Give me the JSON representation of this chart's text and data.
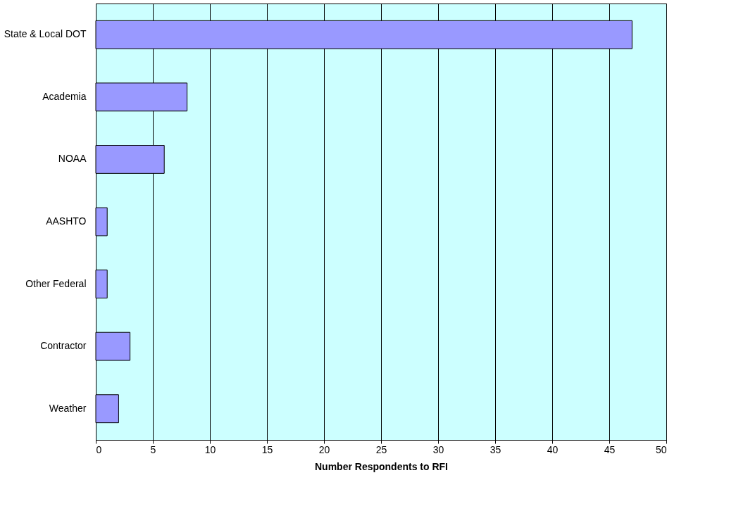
{
  "chart_data": {
    "type": "bar",
    "orientation": "horizontal",
    "categories": [
      "State & Local DOT",
      "Academia",
      "NOAA",
      "AASHTO",
      "Other Federal",
      "Contractor",
      "Weather"
    ],
    "values": [
      47,
      8,
      6,
      1,
      1,
      3,
      2
    ],
    "color": "#9999ff",
    "xlabel": "Number Respondents to RFI",
    "xlim": [
      0,
      50
    ],
    "xticks": [
      0,
      5,
      10,
      15,
      20,
      25,
      30,
      35,
      40,
      45,
      50
    ],
    "grid": "x"
  }
}
